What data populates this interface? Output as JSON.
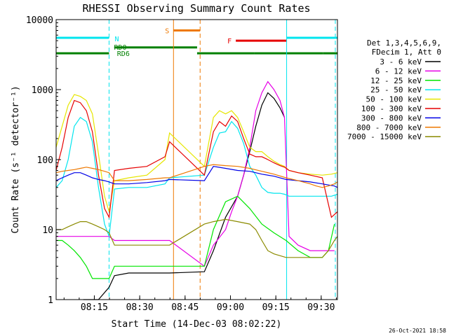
{
  "chart_data": {
    "type": "line",
    "title": "RHESSI Observing Summary Count Rates",
    "xlabel": "Start Time (14-Dec-03 08:02:22)",
    "ylabel": "Count Rate (s⁻¹ detector⁻¹)",
    "y_scale": "log",
    "ylim": [
      1,
      10000
    ],
    "xlim_minutes": [
      0,
      93
    ],
    "x_ticks": [
      {
        "label": "08:15",
        "minute": 12.63
      },
      {
        "label": "08:30",
        "minute": 27.63
      },
      {
        "label": "08:45",
        "minute": 42.63
      },
      {
        "label": "09:00",
        "minute": 57.63
      },
      {
        "label": "09:15",
        "minute": 72.63
      },
      {
        "label": "09:30",
        "minute": 87.63
      }
    ],
    "y_ticks": [
      {
        "label": "1",
        "value": 1
      },
      {
        "label": "10",
        "value": 10
      },
      {
        "label": "100",
        "value": 100
      },
      {
        "label": "1000",
        "value": 1000
      },
      {
        "label": "10000",
        "value": 10000
      }
    ],
    "legend_header": [
      "Det 1,3,4,5,6,9,",
      "FDecim 1, Att 0"
    ],
    "flags": [
      {
        "name": "N",
        "label": "N",
        "color": "#00e5ee",
        "level": 5500,
        "segments": [
          [
            0,
            17.5
          ],
          [
            76.2,
            93
          ]
        ]
      },
      {
        "name": "S",
        "label": "S",
        "color": "#ee7800",
        "level": 7000,
        "segments": [
          [
            38.8,
            47.6
          ]
        ]
      },
      {
        "name": "F",
        "label": "F",
        "color": "#e60000",
        "level": 5000,
        "segments": [
          [
            59.4,
            76.2
          ]
        ]
      },
      {
        "name": "RD0",
        "label": "RD0",
        "color": "#008000",
        "level": 4000,
        "segments": [
          [
            19.2,
            46.6
          ]
        ]
      },
      {
        "name": "RD6",
        "label": "RD6",
        "color": "#008000",
        "level": 3300,
        "segments": [
          [
            0,
            17.5
          ],
          [
            46.6,
            65.5
          ],
          [
            65.5,
            88.2
          ],
          [
            88.2,
            93
          ]
        ]
      }
    ],
    "markers": [
      {
        "name": "night-start",
        "color": "#00e5ee",
        "dashed": false,
        "minute": 0
      },
      {
        "name": "night-end",
        "color": "#00e5ee",
        "dashed": true,
        "minute": 17.5
      },
      {
        "name": "saa-start",
        "color": "#ee7800",
        "dashed": false,
        "minute": 38.8
      },
      {
        "name": "saa-end",
        "color": "#ee7800",
        "dashed": true,
        "minute": 47.6
      },
      {
        "name": "night2-start",
        "color": "#00e5ee",
        "dashed": false,
        "minute": 76.2
      },
      {
        "name": "night2-end",
        "color": "#00e5ee",
        "dashed": true,
        "minute": 92.3
      }
    ],
    "series": [
      {
        "name": "3 - 6 keV",
        "color": "#000000",
        "minute": [
          9,
          14,
          17.5,
          19.3,
          24,
          30,
          36,
          37.5,
          49,
          52,
          56,
          60,
          62,
          64,
          66,
          68,
          70,
          72,
          74,
          75.5
        ],
        "values": [
          1,
          1,
          1.5,
          2.2,
          2.4,
          2.4,
          2.4,
          2.4,
          2.5,
          5,
          15,
          30,
          60,
          130,
          300,
          600,
          900,
          750,
          550,
          400
        ]
      },
      {
        "name": "6 - 12 keV",
        "color": "#e600e6",
        "minute": [
          0,
          2,
          4,
          6,
          8,
          10,
          12,
          14,
          16,
          17.5,
          19.3,
          24,
          30,
          36,
          37.5,
          49,
          52,
          56,
          58,
          60,
          62,
          64,
          66,
          68,
          70,
          72,
          74,
          75.5,
          77,
          80,
          84,
          88,
          92
        ],
        "values": [
          8,
          8,
          8,
          8,
          8,
          8,
          8,
          8,
          8,
          8,
          7,
          7,
          7,
          7,
          7,
          3,
          6,
          10,
          18,
          30,
          60,
          150,
          500,
          900,
          1300,
          1000,
          700,
          400,
          8,
          6,
          5,
          5,
          5
        ]
      },
      {
        "name": "12 - 25 keV",
        "color": "#00e600",
        "minute": [
          0,
          2,
          4,
          6,
          8,
          10,
          12,
          14,
          16,
          17.5,
          19.3,
          24,
          30,
          36,
          37.5,
          49,
          52,
          56,
          60,
          64,
          68,
          72,
          76,
          80,
          84,
          88,
          90,
          92
        ],
        "values": [
          7,
          7,
          6,
          5,
          4,
          3,
          2,
          2,
          2,
          2,
          3,
          3,
          3,
          3,
          3,
          3,
          10,
          25,
          30,
          20,
          12,
          9,
          7,
          5,
          4,
          4,
          5,
          12
        ]
      },
      {
        "name": "25 - 50 keV",
        "color": "#00e5ee",
        "minute": [
          0,
          2,
          4,
          6,
          8,
          10,
          12,
          14,
          16,
          17.5,
          19.3,
          24,
          30,
          36,
          37.5,
          49,
          52,
          54,
          56,
          58,
          60,
          62,
          64,
          66,
          68,
          70,
          72,
          74,
          75.5,
          77,
          80,
          84,
          88,
          91,
          93
        ],
        "values": [
          40,
          50,
          100,
          300,
          400,
          350,
          180,
          40,
          12,
          8,
          38,
          40,
          40,
          45,
          55,
          60,
          150,
          240,
          250,
          350,
          280,
          170,
          80,
          60,
          40,
          34,
          33,
          33,
          32,
          30,
          30,
          30,
          30,
          30,
          32
        ]
      },
      {
        "name": "50 - 100 keV",
        "color": "#e6e600",
        "minute": [
          0,
          2,
          4,
          6,
          8,
          10,
          12,
          14,
          16,
          17.5,
          19.3,
          24,
          30,
          36,
          37.5,
          49,
          52,
          54,
          56,
          58,
          60,
          62,
          64,
          66,
          68,
          70,
          72,
          74,
          75.5,
          77,
          80,
          84,
          88,
          91,
          93
        ],
        "values": [
          150,
          300,
          600,
          850,
          800,
          700,
          450,
          120,
          30,
          18,
          50,
          55,
          60,
          100,
          240,
          80,
          400,
          500,
          450,
          500,
          400,
          250,
          150,
          130,
          130,
          110,
          95,
          85,
          80,
          70,
          65,
          62,
          60,
          62,
          65
        ]
      },
      {
        "name": "100 - 300 keV",
        "color": "#e60000",
        "minute": [
          0,
          2,
          4,
          6,
          8,
          10,
          12,
          14,
          16,
          17.5,
          19.3,
          24,
          30,
          36,
          37.5,
          49,
          52,
          54,
          56,
          58,
          60,
          62,
          64,
          66,
          68,
          70,
          72,
          74,
          75.5,
          77,
          80,
          84,
          88,
          91,
          93
        ],
        "values": [
          70,
          150,
          400,
          700,
          650,
          500,
          250,
          60,
          20,
          15,
          70,
          75,
          80,
          110,
          180,
          60,
          250,
          350,
          300,
          420,
          350,
          200,
          120,
          110,
          110,
          100,
          90,
          82,
          78,
          70,
          65,
          60,
          55,
          15,
          18
        ]
      },
      {
        "name": "300 - 800 keV",
        "color": "#0000e6",
        "minute": [
          0,
          2,
          4,
          6,
          8,
          10,
          12,
          14,
          16,
          17.5,
          19.3,
          24,
          30,
          36,
          37.5,
          49,
          52,
          56,
          60,
          64,
          68,
          72,
          76,
          80,
          84,
          88,
          92,
          93
        ],
        "values": [
          50,
          55,
          60,
          65,
          65,
          60,
          55,
          52,
          50,
          48,
          45,
          45,
          47,
          50,
          52,
          50,
          80,
          75,
          70,
          68,
          62,
          58,
          52,
          50,
          48,
          45,
          42,
          40
        ]
      },
      {
        "name": "800 - 7000 keV",
        "color": "#ee7800",
        "minute": [
          0,
          2,
          4,
          6,
          8,
          10,
          12,
          14,
          16,
          17.5,
          19.3,
          24,
          30,
          36,
          37.5,
          49,
          52,
          56,
          60,
          64,
          68,
          72,
          76,
          80,
          84,
          86,
          88,
          90,
          92,
          93
        ],
        "values": [
          65,
          68,
          70,
          72,
          75,
          78,
          75,
          72,
          68,
          65,
          50,
          50,
          52,
          55,
          55,
          80,
          85,
          82,
          80,
          75,
          68,
          62,
          55,
          50,
          45,
          42,
          40,
          42,
          45,
          48
        ]
      },
      {
        "name": "7000 - 15000 keV",
        "color": "#8b8b00",
        "minute": [
          0,
          2,
          4,
          6,
          8,
          10,
          12,
          14,
          16,
          17.5,
          19.3,
          24,
          30,
          36,
          37.5,
          49,
          52,
          56,
          60,
          64,
          66,
          68,
          70,
          72,
          76,
          80,
          84,
          88,
          90,
          92,
          93
        ],
        "values": [
          10,
          10,
          11,
          12,
          13,
          13,
          12,
          11,
          10,
          9,
          6,
          6,
          6,
          6,
          6,
          12,
          13,
          14,
          13,
          12,
          10,
          7,
          5,
          4.5,
          4,
          4,
          4,
          4,
          5,
          7,
          8
        ]
      }
    ],
    "timestamp": "26-Oct-2021 18:58"
  }
}
